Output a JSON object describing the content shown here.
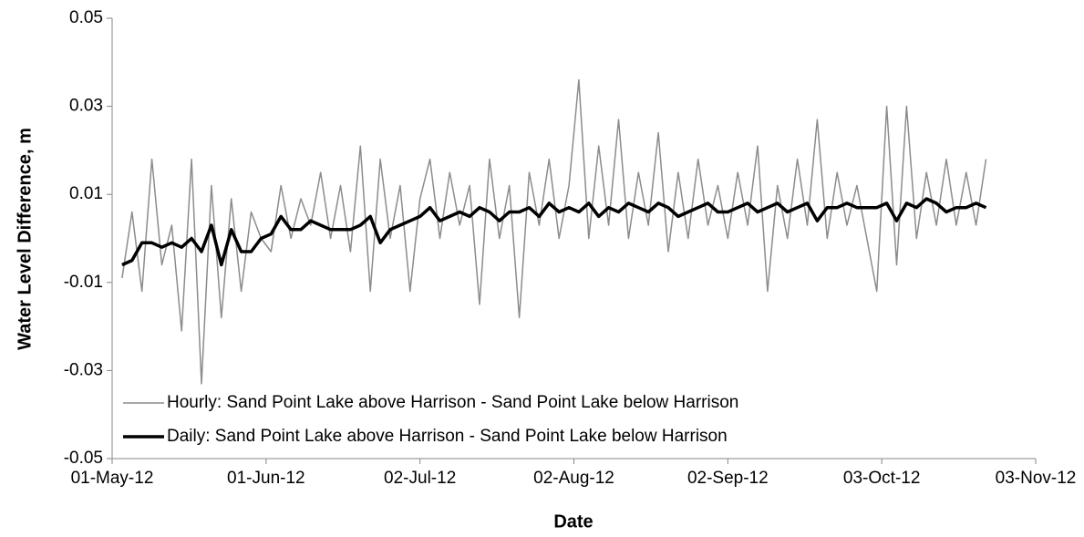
{
  "chart_data": {
    "type": "line",
    "xlabel": "Date",
    "ylabel": "Water Level Difference, m",
    "xlim": [
      "2012-05-01",
      "2012-11-03"
    ],
    "xticks": [
      {
        "value": "2012-05-01",
        "label": "01-May-12"
      },
      {
        "value": "2012-06-01",
        "label": "01-Jun-12"
      },
      {
        "value": "2012-07-02",
        "label": "02-Jul-12"
      },
      {
        "value": "2012-08-02",
        "label": "02-Aug-12"
      },
      {
        "value": "2012-09-02",
        "label": "02-Sep-12"
      },
      {
        "value": "2012-10-03",
        "label": "03-Oct-12"
      },
      {
        "value": "2012-11-03",
        "label": "03-Nov-12"
      }
    ],
    "ylim": [
      -0.05,
      0.05
    ],
    "yticks": [
      -0.05,
      -0.03,
      -0.01,
      0.01,
      0.03,
      0.05
    ],
    "legend": "lower left",
    "x": [
      "2012-05-03",
      "2012-05-05",
      "2012-05-07",
      "2012-05-09",
      "2012-05-11",
      "2012-05-13",
      "2012-05-15",
      "2012-05-17",
      "2012-05-19",
      "2012-05-21",
      "2012-05-23",
      "2012-05-25",
      "2012-05-27",
      "2012-05-29",
      "2012-05-31",
      "2012-06-02",
      "2012-06-04",
      "2012-06-06",
      "2012-06-08",
      "2012-06-10",
      "2012-06-12",
      "2012-06-14",
      "2012-06-16",
      "2012-06-18",
      "2012-06-20",
      "2012-06-22",
      "2012-06-24",
      "2012-06-26",
      "2012-06-28",
      "2012-06-30",
      "2012-07-02",
      "2012-07-04",
      "2012-07-06",
      "2012-07-08",
      "2012-07-10",
      "2012-07-12",
      "2012-07-14",
      "2012-07-16",
      "2012-07-18",
      "2012-07-20",
      "2012-07-22",
      "2012-07-24",
      "2012-07-26",
      "2012-07-28",
      "2012-07-30",
      "2012-08-01",
      "2012-08-03",
      "2012-08-05",
      "2012-08-07",
      "2012-08-09",
      "2012-08-11",
      "2012-08-13",
      "2012-08-15",
      "2012-08-17",
      "2012-08-19",
      "2012-08-21",
      "2012-08-23",
      "2012-08-25",
      "2012-08-27",
      "2012-08-29",
      "2012-08-31",
      "2012-09-02",
      "2012-09-04",
      "2012-09-06",
      "2012-09-08",
      "2012-09-10",
      "2012-09-12",
      "2012-09-14",
      "2012-09-16",
      "2012-09-18",
      "2012-09-20",
      "2012-09-22",
      "2012-09-24",
      "2012-09-26",
      "2012-09-28",
      "2012-09-30",
      "2012-10-02",
      "2012-10-04",
      "2012-10-06",
      "2012-10-08",
      "2012-10-10",
      "2012-10-12",
      "2012-10-14",
      "2012-10-16",
      "2012-10-18",
      "2012-10-20",
      "2012-10-22",
      "2012-10-24"
    ],
    "series": [
      {
        "name": "Hourly:  Sand Point Lake above Harrison - Sand Point Lake below Harrison",
        "color": "#8c8c8c",
        "width": 1.5,
        "values": [
          -0.009,
          0.006,
          -0.012,
          0.018,
          -0.006,
          0.003,
          -0.021,
          0.018,
          -0.033,
          0.012,
          -0.018,
          0.009,
          -0.012,
          0.006,
          0.0,
          -0.003,
          0.012,
          0.0,
          0.009,
          0.003,
          0.015,
          0.0,
          0.012,
          -0.003,
          0.021,
          -0.012,
          0.018,
          0.0,
          0.012,
          -0.012,
          0.009,
          0.018,
          0.0,
          0.015,
          0.003,
          0.012,
          -0.015,
          0.018,
          0.0,
          0.012,
          -0.018,
          0.015,
          0.003,
          0.018,
          0.0,
          0.012,
          0.036,
          0.0,
          0.021,
          0.003,
          0.027,
          0.0,
          0.015,
          0.003,
          0.024,
          -0.003,
          0.015,
          0.0,
          0.018,
          0.003,
          0.012,
          0.0,
          0.015,
          0.003,
          0.021,
          -0.012,
          0.012,
          0.0,
          0.018,
          0.003,
          0.027,
          0.0,
          0.015,
          0.003,
          0.012,
          0.0,
          -0.012,
          0.03,
          -0.006,
          0.03,
          0.0,
          0.015,
          0.003,
          0.018,
          0.003,
          0.015,
          0.003,
          0.018
        ]
      },
      {
        "name": "Daily:  Sand Point Lake above Harrison - Sand Point Lake below Harrison",
        "color": "#000000",
        "width": 3.5,
        "values": [
          -0.006,
          -0.005,
          -0.001,
          -0.001,
          -0.002,
          -0.001,
          -0.002,
          0.0,
          -0.003,
          0.003,
          -0.006,
          0.002,
          -0.003,
          -0.003,
          0.0,
          0.001,
          0.005,
          0.002,
          0.002,
          0.004,
          0.003,
          0.002,
          0.002,
          0.002,
          0.003,
          0.005,
          -0.001,
          0.002,
          0.003,
          0.004,
          0.005,
          0.007,
          0.004,
          0.005,
          0.006,
          0.005,
          0.007,
          0.006,
          0.004,
          0.006,
          0.006,
          0.007,
          0.005,
          0.008,
          0.006,
          0.007,
          0.006,
          0.008,
          0.005,
          0.007,
          0.006,
          0.008,
          0.007,
          0.006,
          0.008,
          0.007,
          0.005,
          0.006,
          0.007,
          0.008,
          0.006,
          0.006,
          0.007,
          0.008,
          0.006,
          0.007,
          0.008,
          0.006,
          0.007,
          0.008,
          0.004,
          0.007,
          0.007,
          0.008,
          0.007,
          0.007,
          0.007,
          0.008,
          0.004,
          0.008,
          0.007,
          0.009,
          0.008,
          0.006,
          0.007,
          0.007,
          0.008,
          0.007
        ]
      }
    ]
  }
}
